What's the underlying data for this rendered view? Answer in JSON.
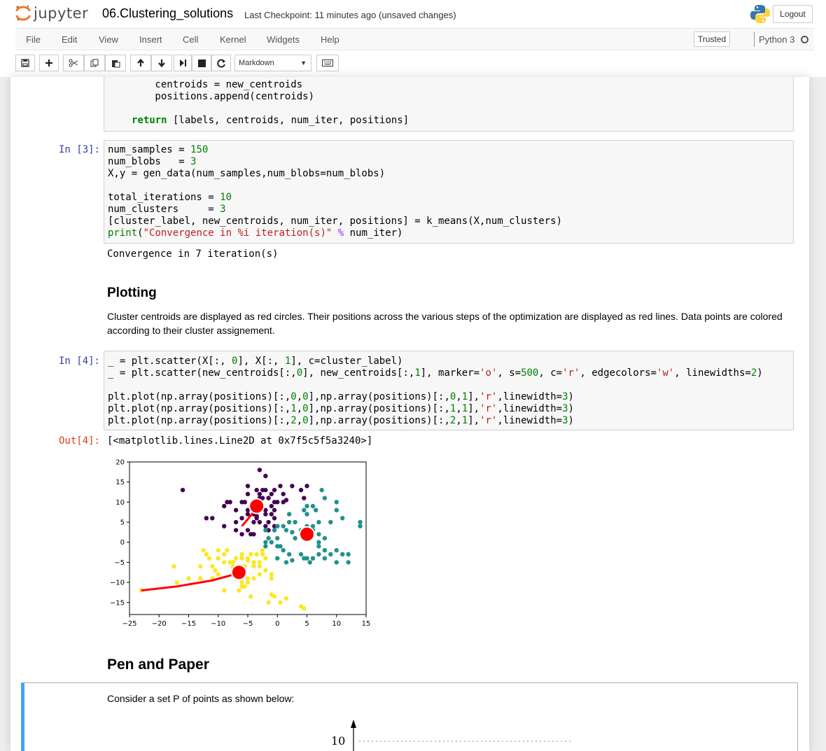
{
  "header": {
    "logo_text": "jupyter",
    "notebook_name": "06.Clustering_solutions",
    "checkpoint": "Last Checkpoint: 11 minutes ago (unsaved changes)",
    "logout_label": "Logout"
  },
  "menu": {
    "items": [
      "File",
      "Edit",
      "View",
      "Insert",
      "Cell",
      "Kernel",
      "Widgets",
      "Help"
    ],
    "trusted_label": "Trusted",
    "kernel_name": "Python 3"
  },
  "toolbar": {
    "cell_type": "Markdown",
    "icons": [
      "save-icon",
      "add-cell-icon",
      "cut-icon",
      "copy-icon",
      "paste-icon",
      "move-up-icon",
      "move-down-icon",
      "run-icon",
      "stop-icon",
      "restart-icon",
      "keyboard-icon"
    ]
  },
  "cells": {
    "code0_lines": [
      "        centroids = new_centroids",
      "        positions.append(centroids)",
      "",
      "    return [labels, centroids, num_iter, positions]"
    ],
    "in3_prompt": "In [3]:",
    "in3_lines": [
      "num_samples = 150",
      "num_blobs   = 3",
      "X,y = gen_data(num_samples,num_blobs=num_blobs)",
      "",
      "total_iterations = 10",
      "num_clusters     = 3",
      "[cluster_label, new_centroids, num_iter, positions] = k_means(X,num_clusters)",
      "print(\"Convergence in %i iteration(s)\" % num_iter)"
    ],
    "out3_text": "Convergence in 7 iteration(s)",
    "plotting_heading": "Plotting",
    "plotting_text": "Cluster centroids are displayed as red circles. Their positions across the various steps of the optimization are displayed as red lines. Data points are colored according to their cluster assignement.",
    "in4_prompt": "In [4]:",
    "in4_lines": [
      "_ = plt.scatter(X[:, 0], X[:, 1], c=cluster_label)",
      "_ = plt.scatter(new_centroids[:,0], new_centroids[:,1], marker='o', s=500, c='r', edgecolors='w', linewidths=2)",
      "",
      "plt.plot(np.array(positions)[:,0,0],np.array(positions)[:,0,1],'r',linewidth=3)",
      "plt.plot(np.array(positions)[:,1,0],np.array(positions)[:,1,1],'r',linewidth=3)",
      "plt.plot(np.array(positions)[:,2,0],np.array(positions)[:,2,1],'r',linewidth=3)"
    ],
    "out4_prompt": "Out[4]:",
    "out4_text": "[<matplotlib.lines.Line2D at 0x7f5c5f5a3240>]",
    "pen_heading": "Pen and Paper",
    "pen_text": "Consider a set P of points as shown below:",
    "pen_axis_label": "10"
  },
  "chart_data": {
    "type": "scatter",
    "xlim": [
      -25,
      15
    ],
    "ylim": [
      -18,
      20
    ],
    "xticks": [
      "−25",
      "−20",
      "−15",
      "−10",
      "−5",
      "0",
      "5",
      "10",
      "15"
    ],
    "yticks": [
      "20",
      "15",
      "10",
      "5",
      "0",
      "−5",
      "−10",
      "−15"
    ],
    "grid": false,
    "colors": {
      "cluster0": "#440154",
      "cluster1": "#21918c",
      "cluster2": "#fde725",
      "centroid": "#ff0000"
    },
    "series": [
      {
        "points": [
          [
            -16,
            13
          ],
          [
            -3,
            18
          ],
          [
            -5,
            14
          ],
          [
            -3.5,
            13
          ],
          [
            -2.5,
            13
          ],
          [
            -2,
            13
          ],
          [
            -5,
            12
          ],
          [
            -6,
            10
          ],
          [
            -8,
            10
          ],
          [
            -8.5,
            10
          ],
          [
            -9,
            9
          ],
          [
            -7,
            8
          ],
          [
            -5,
            8
          ],
          [
            -4.5,
            9
          ],
          [
            -3,
            11
          ],
          [
            -2.5,
            11
          ],
          [
            -1.5,
            11
          ],
          [
            -0.5,
            10
          ],
          [
            0,
            10
          ],
          [
            1,
            10
          ],
          [
            1.5,
            10.5
          ],
          [
            -1,
            9
          ],
          [
            -0.5,
            8
          ],
          [
            -1,
            7
          ],
          [
            -0.5,
            6
          ],
          [
            0,
            4
          ],
          [
            -2,
            4
          ],
          [
            -3,
            5
          ],
          [
            -3.5,
            6
          ],
          [
            -4,
            7
          ],
          [
            -5,
            7
          ],
          [
            -6,
            6
          ],
          [
            -7,
            5
          ],
          [
            -9,
            4
          ],
          [
            -11,
            6
          ],
          [
            -12,
            6
          ],
          [
            -6,
            2
          ],
          [
            -4,
            2
          ],
          [
            -4.5,
            2
          ],
          [
            -5,
            3
          ],
          [
            -7,
            3
          ],
          [
            -4,
            5
          ],
          [
            -2,
            7
          ],
          [
            -1.5,
            5
          ],
          [
            -0.5,
            4
          ],
          [
            -2,
            8
          ],
          [
            -5.5,
            10
          ],
          [
            -4,
            10
          ],
          [
            -3,
            12
          ],
          [
            -1,
            12
          ],
          [
            -0.5,
            13
          ],
          [
            1,
            12
          ],
          [
            2.5,
            14
          ],
          [
            4,
            13
          ],
          [
            5,
            14
          ],
          [
            4.5,
            11
          ],
          [
            0.5,
            14
          ],
          [
            -2,
            16.5
          ],
          [
            -3.5,
            6.5
          ],
          [
            -1.5,
            3
          ]
        ]
      },
      {
        "points": [
          [
            2,
            7
          ],
          [
            4.5,
            8
          ],
          [
            5,
            9
          ],
          [
            6,
            9
          ],
          [
            5,
            7
          ],
          [
            6.5,
            8
          ],
          [
            7.5,
            13
          ],
          [
            8,
            11
          ],
          [
            10,
            10
          ],
          [
            10,
            8
          ],
          [
            11,
            6
          ],
          [
            9,
            5
          ],
          [
            7,
            5
          ],
          [
            6,
            4
          ],
          [
            6,
            2
          ],
          [
            5,
            1
          ],
          [
            3,
            1
          ],
          [
            2.5,
            2.5
          ],
          [
            1.5,
            3
          ],
          [
            1,
            4
          ],
          [
            -0.5,
            3
          ],
          [
            0,
            1
          ],
          [
            -1.5,
            1
          ],
          [
            -2,
            -1
          ],
          [
            -1,
            0
          ],
          [
            0,
            -1
          ],
          [
            1,
            -2
          ],
          [
            0.5,
            -1
          ],
          [
            -2,
            3
          ],
          [
            -2,
            0
          ],
          [
            0,
            4
          ],
          [
            2,
            5
          ],
          [
            3,
            5
          ],
          [
            4,
            3
          ],
          [
            5,
            4
          ],
          [
            6,
            3
          ],
          [
            7,
            2
          ],
          [
            8,
            1
          ],
          [
            7,
            0
          ],
          [
            7,
            -1
          ],
          [
            8,
            -2
          ],
          [
            9,
            -3
          ],
          [
            10,
            -2
          ],
          [
            11,
            -3
          ],
          [
            12,
            -3
          ],
          [
            12,
            -5
          ],
          [
            10,
            -5
          ],
          [
            8,
            -4
          ],
          [
            7,
            -3
          ],
          [
            6,
            -4
          ],
          [
            5,
            -4
          ],
          [
            4,
            -3
          ],
          [
            4.5,
            -4
          ],
          [
            5.5,
            -5
          ],
          [
            2,
            -3
          ],
          [
            2.5,
            -4.5
          ],
          [
            1.5,
            -5
          ],
          [
            0,
            -4
          ],
          [
            14,
            5
          ],
          [
            14,
            4
          ]
        ]
      },
      {
        "points": [
          [
            -23,
            -12
          ],
          [
            -17,
            -10
          ],
          [
            -13,
            -9
          ],
          [
            -11,
            -9
          ],
          [
            -10,
            -8
          ],
          [
            -10.5,
            -7
          ],
          [
            -11,
            -6
          ],
          [
            -11.5,
            -4
          ],
          [
            -12,
            -3
          ],
          [
            -10,
            -4
          ],
          [
            -9,
            -5
          ],
          [
            -8,
            -5
          ],
          [
            -7.5,
            -5
          ],
          [
            -7,
            -4
          ],
          [
            -6,
            -3
          ],
          [
            -5,
            -4
          ],
          [
            -4.5,
            -3
          ],
          [
            -3.5,
            -3
          ],
          [
            -2.5,
            -2
          ],
          [
            -2.5,
            -3
          ],
          [
            -2,
            -4
          ],
          [
            -3,
            -5
          ],
          [
            -4,
            -5
          ],
          [
            -5,
            -4.5
          ],
          [
            -5.5,
            -6
          ],
          [
            -6,
            -6
          ],
          [
            -7,
            -7
          ],
          [
            -7.5,
            -8
          ],
          [
            -7,
            -9
          ],
          [
            -6,
            -10
          ],
          [
            -5,
            -10
          ],
          [
            -5.5,
            -11
          ],
          [
            -6,
            -11
          ],
          [
            -5,
            -9
          ],
          [
            -4,
            -9
          ],
          [
            -3,
            -8
          ],
          [
            -2,
            -7
          ],
          [
            -1,
            -8
          ],
          [
            -1,
            -9
          ],
          [
            -3,
            -6
          ],
          [
            -4,
            -6
          ],
          [
            -8.5,
            -2
          ],
          [
            -10,
            -2
          ],
          [
            -12.5,
            -2
          ],
          [
            -13,
            -6
          ],
          [
            -15,
            -9
          ],
          [
            -17.5,
            -6
          ],
          [
            -9,
            -12
          ],
          [
            -6.5,
            -12
          ],
          [
            -4.5,
            -13.5
          ],
          [
            -1,
            -13
          ],
          [
            -0.5,
            -13.5
          ],
          [
            1.5,
            -14
          ],
          [
            0.5,
            -15
          ],
          [
            -1.5,
            -15
          ],
          [
            4,
            -16
          ],
          [
            4.5,
            -16.5
          ],
          [
            -6,
            -4
          ],
          [
            -9,
            -3
          ],
          [
            -7.5,
            -6
          ]
        ]
      }
    ],
    "centroids": [
      [
        -3.5,
        9
      ],
      [
        5,
        2
      ],
      [
        -6.5,
        -7.5
      ]
    ],
    "centroid_paths": [
      {
        "points": [
          [
            -6,
            4
          ],
          [
            -4.3,
            7
          ],
          [
            -3.8,
            8
          ],
          [
            -3.5,
            9
          ]
        ]
      },
      {
        "points": [
          [
            4.6,
            3
          ],
          [
            4.8,
            2.5
          ],
          [
            5,
            2
          ]
        ]
      },
      {
        "points": [
          [
            -23,
            -12
          ],
          [
            -17,
            -11
          ],
          [
            -11,
            -9.5
          ],
          [
            -8,
            -8.3
          ],
          [
            -6.5,
            -7.5
          ]
        ]
      }
    ]
  }
}
